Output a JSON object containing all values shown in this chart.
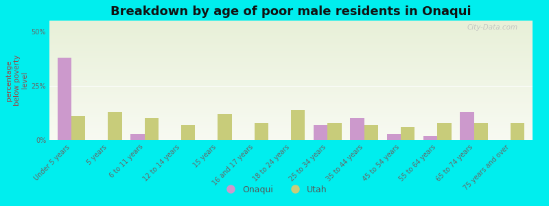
{
  "title": "Breakdown by age of poor male residents in Onaqui",
  "categories": [
    "Under 5 years",
    "5 years",
    "6 to 11 years",
    "12 to 14 years",
    "15 years",
    "16 and 17 years",
    "18 to 24 years",
    "25 to 34 years",
    "35 to 44 years",
    "45 to 54 years",
    "55 to 64 years",
    "65 to 74 years",
    "75 years and over"
  ],
  "onaqui_values": [
    38,
    0,
    3,
    0,
    0,
    0,
    0,
    7,
    10,
    3,
    2,
    13,
    0
  ],
  "utah_values": [
    11,
    13,
    10,
    7,
    12,
    8,
    14,
    8,
    7,
    6,
    8,
    8,
    8
  ],
  "onaqui_color": "#cc99cc",
  "utah_color": "#c8cc7a",
  "background_color": "#00eeee",
  "plot_bg_top": "#e8f0d8",
  "plot_bg_bottom": "#f8faf2",
  "ylabel": "percentage\nbelow poverty\nlevel",
  "ylim": [
    0,
    55
  ],
  "yticks": [
    0,
    25,
    50
  ],
  "ytick_labels": [
    "0%",
    "25%",
    "50%"
  ],
  "bar_width": 0.38,
  "legend_labels": [
    "Onaqui",
    "Utah"
  ],
  "watermark": "City-Data.com",
  "title_fontsize": 13,
  "axis_label_fontsize": 7.5,
  "tick_fontsize": 7.0,
  "ylabel_color": "#994444"
}
